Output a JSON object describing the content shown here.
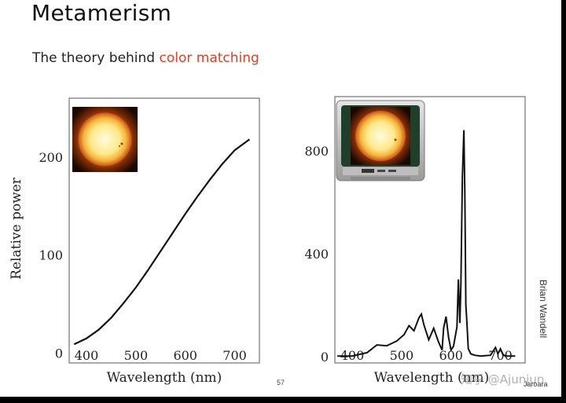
{
  "slide": {
    "title": "Metamerism",
    "subtitle_prefix": "The theory behind ",
    "subtitle_highlight": "color matching",
    "credit": "Brian Wandell",
    "page_number": "57",
    "watermark": "知乎 @Ajunjun",
    "footer_tag": "Jaroara",
    "accent_color": "#d9412a"
  },
  "chart_data": [
    {
      "type": "line",
      "title": "",
      "xlabel": "Wavelength (nm)",
      "ylabel": "Relative power",
      "xlim": [
        365,
        750
      ],
      "ylim": [
        -10,
        260
      ],
      "xticks": [
        400,
        500,
        600,
        700
      ],
      "yticks": [
        0,
        100,
        200
      ],
      "series": [
        {
          "x": [
            375,
            400,
            425,
            450,
            475,
            500,
            525,
            550,
            575,
            600,
            625,
            650,
            675,
            700,
            730
          ],
          "y": [
            9,
            15,
            24,
            36,
            51,
            67,
            85,
            104,
            123,
            142,
            160,
            177,
            193,
            207,
            218
          ]
        }
      ],
      "inset_icon": "sun-image"
    },
    {
      "type": "line",
      "title": "",
      "xlabel": "Wavelength (nm)",
      "ylabel": "",
      "xlim": [
        365,
        750
      ],
      "ylim": [
        -25,
        1010
      ],
      "xticks": [
        400,
        500,
        600,
        700
      ],
      "yticks": [
        0,
        400,
        800
      ],
      "series": [
        {
          "x": [
            370,
            400,
            430,
            450,
            470,
            490,
            505,
            515,
            525,
            535,
            540,
            545,
            555,
            565,
            575,
            582,
            585,
            590,
            595,
            600,
            605,
            612,
            615,
            618,
            620,
            623,
            626,
            628,
            630,
            632,
            635,
            640,
            648,
            660,
            680,
            690,
            695,
            700,
            705,
            710,
            730
          ],
          "y": [
            2,
            2,
            15,
            45,
            42,
            60,
            85,
            120,
            100,
            150,
            165,
            125,
            65,
            110,
            55,
            25,
            110,
            155,
            75,
            25,
            40,
            115,
            300,
            130,
            280,
            700,
            880,
            640,
            200,
            140,
            30,
            10,
            5,
            2,
            5,
            35,
            10,
            30,
            8,
            2,
            2
          ]
        }
      ],
      "inset_icon": "crt-television-image"
    }
  ]
}
